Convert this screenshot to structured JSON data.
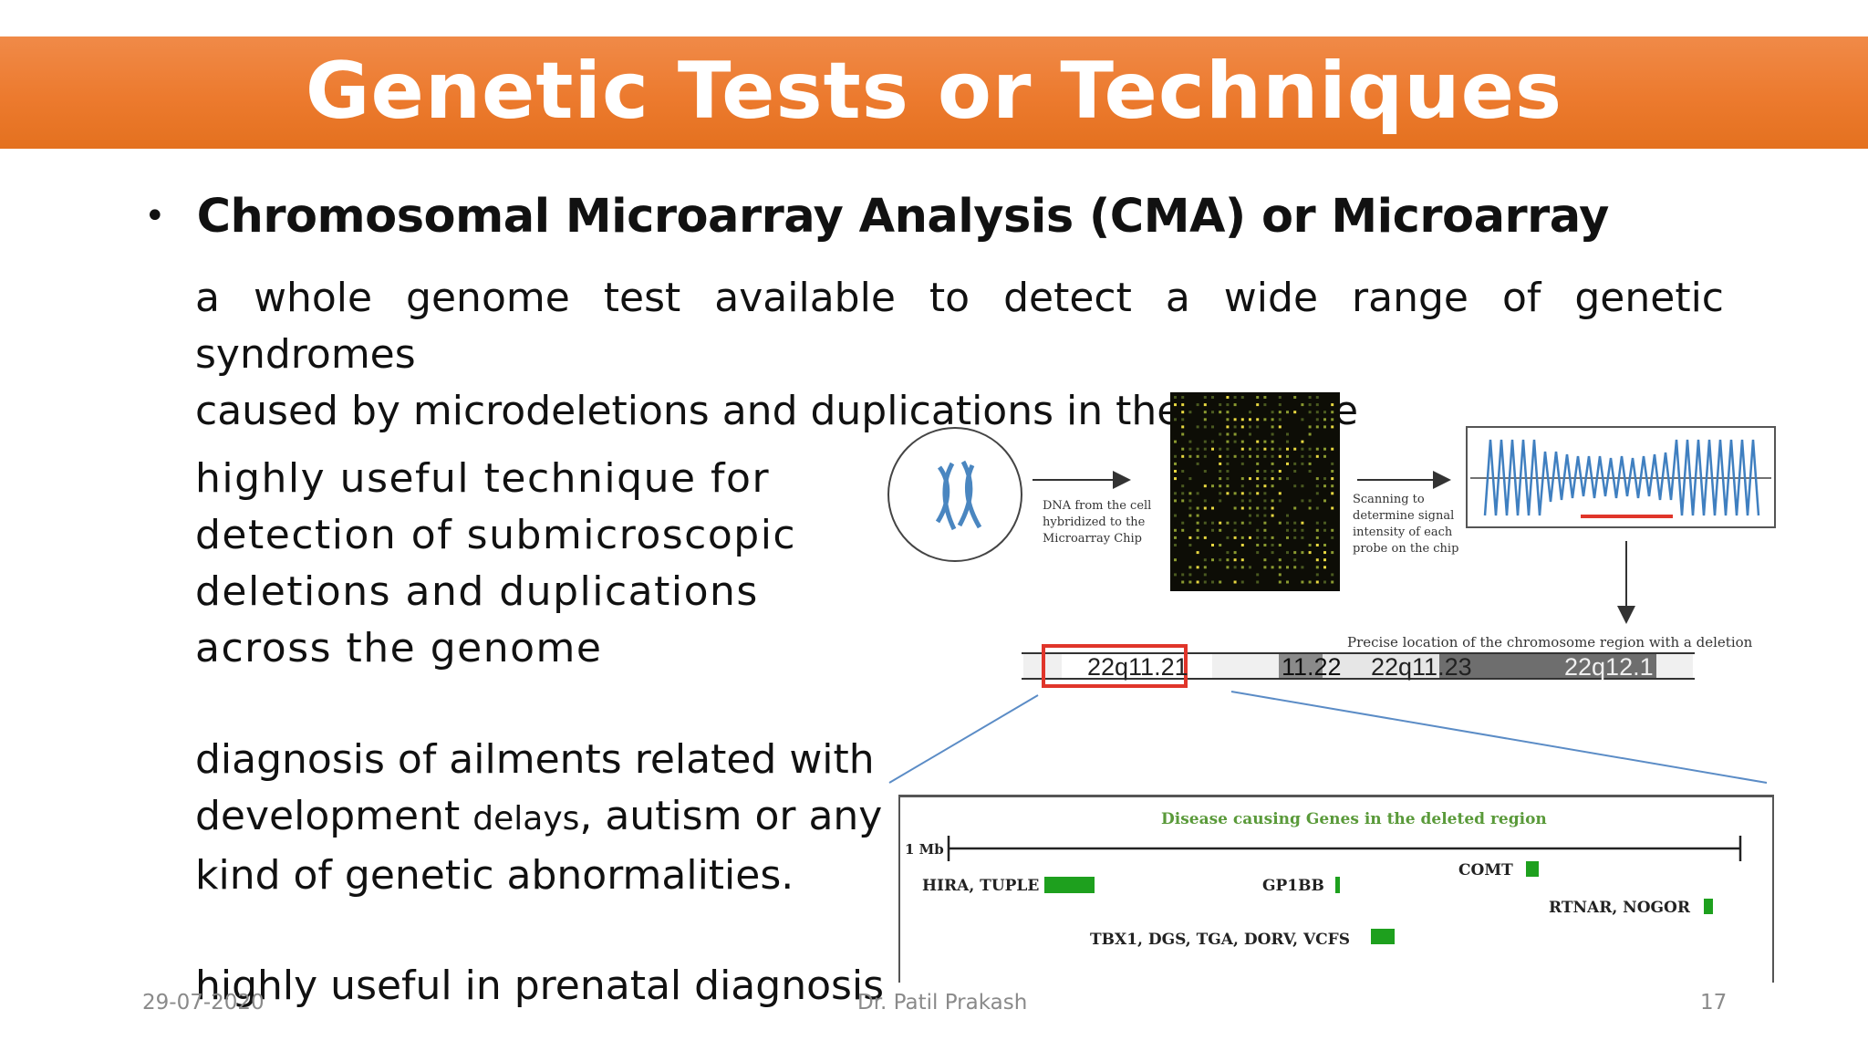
{
  "slide": {
    "title": "Genetic Tests or Techniques",
    "bullet_heading": "Chromosomal Microarray Analysis (CMA) or Microarray",
    "intro_line1": "a whole genome test available to detect a wide range of genetic syndromes",
    "intro_line2": "caused by microdeletions and duplications in the genome",
    "para1": [
      "highly useful technique for",
      "detection of submicroscopic",
      "deletions and duplications",
      "across the genome"
    ],
    "para2_line1": "diagnosis of ailments related with",
    "para2_line2_a": "development ",
    "para2_line2_small": "delays",
    "para2_line2_b": ", autism or any",
    "para2_line3": "kind of genetic abnormalities.",
    "para3": "highly useful in prenatal diagnosis"
  },
  "footer": {
    "date": "29-07-2020",
    "author": "Dr. Patil Prakash",
    "page": "17"
  },
  "figure": {
    "step1_label": [
      "DNA from the cell",
      "hybridized to the",
      "Microarray Chip"
    ],
    "step2_label": [
      "Scanning to",
      "determine signal",
      "intensity of each",
      "probe on the chip"
    ],
    "location_label": "Precise location of the chromosome region with a deletion",
    "bands": [
      "22q11.21",
      "11.22",
      "22q11.23",
      "22q12.1"
    ],
    "zoom_title": "Disease causing Genes in the deleted region",
    "scale_label": "1 Mb",
    "genes": {
      "hira": "HIRA, TUPLE",
      "gp1bb": "GP1BB",
      "comt": "COMT",
      "rtnar": "RTNAR, NOGOR",
      "tbx1": "TBX1, DGS, TGA, DORV, VCFS"
    },
    "colors": {
      "title_bar": "#ec7a2e",
      "deletion_highlight": "#e0352a",
      "gene_marker": "#1ea01e",
      "zoom_title": "#5a9a3a",
      "signal_wave": "#3f7fc0"
    }
  }
}
